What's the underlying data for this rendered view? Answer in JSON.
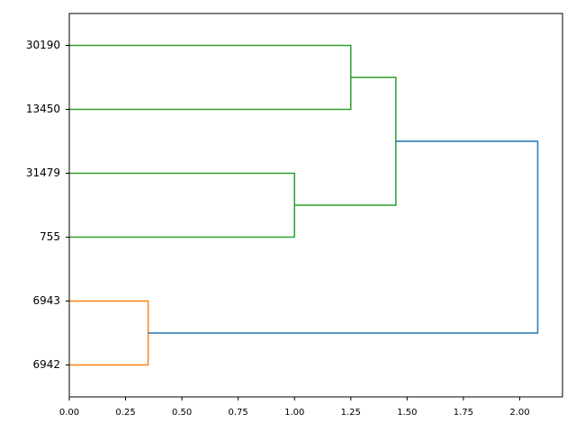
{
  "chart_data": {
    "type": "dendrogram",
    "xlim": [
      0,
      2.19
    ],
    "xticks": [
      {
        "value": 0,
        "label": "0.00"
      },
      {
        "value": 0.25,
        "label": "0.25"
      },
      {
        "value": 0.5,
        "label": "0.50"
      },
      {
        "value": 0.75,
        "label": "0.75"
      },
      {
        "value": 1.0,
        "label": "1.00"
      },
      {
        "value": 1.25,
        "label": "1.25"
      },
      {
        "value": 1.5,
        "label": "1.50"
      },
      {
        "value": 1.75,
        "label": "1.75"
      },
      {
        "value": 2.0,
        "label": "2.00"
      }
    ],
    "tree": {
      "height": 2.08,
      "color": "#1f77b4",
      "children": [
        {
          "height": 0.35,
          "color": "#ff7f0e",
          "children": [
            {
              "label": "6942"
            },
            {
              "label": "6943"
            }
          ]
        },
        {
          "height": 1.45,
          "color": "#2ca02c",
          "children": [
            {
              "height": 1.0,
              "color": "#2ca02c",
              "children": [
                {
                  "label": "755"
                },
                {
                  "label": "31479"
                }
              ]
            },
            {
              "height": 1.25,
              "color": "#2ca02c",
              "children": [
                {
                  "label": "13450"
                },
                {
                  "label": "30190"
                }
              ]
            }
          ]
        }
      ]
    }
  }
}
